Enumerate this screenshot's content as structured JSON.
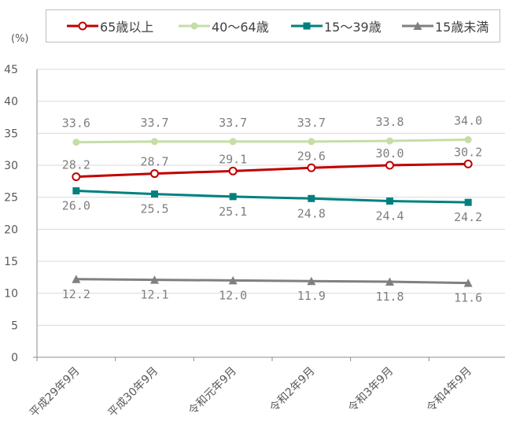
{
  "chart_data": {
    "type": "line",
    "unit_label": "(%)",
    "categories": [
      "平成29年9月",
      "平成30年9月",
      "令和元年9月",
      "令和2年9月",
      "令和3年9月",
      "令和4年9月"
    ],
    "ylim": [
      0,
      45
    ],
    "yticks": [
      0,
      5,
      10,
      15,
      20,
      25,
      30,
      35,
      40,
      45
    ],
    "grid": "horizontal",
    "legend_position": "top",
    "series": [
      {
        "name": "65歳以上",
        "values": [
          28.2,
          28.7,
          29.1,
          29.6,
          30.0,
          30.2
        ],
        "labels": [
          "28.2",
          "28.7",
          "29.1",
          "29.6",
          "30.0",
          "30.2"
        ],
        "color": "#c00000",
        "marker": "circle-open"
      },
      {
        "name": "40～64歳",
        "values": [
          33.6,
          33.7,
          33.7,
          33.7,
          33.8,
          34.0
        ],
        "labels": [
          "33.6",
          "33.7",
          "33.7",
          "33.7",
          "33.8",
          "34.0"
        ],
        "color": "#c4dea6",
        "marker": "circle"
      },
      {
        "name": "15～39歳",
        "values": [
          26.0,
          25.5,
          25.1,
          24.8,
          24.4,
          24.2
        ],
        "labels": [
          "26.0",
          "25.5",
          "25.1",
          "24.8",
          "24.4",
          "24.2"
        ],
        "color": "#008080",
        "marker": "square"
      },
      {
        "name": "15歳未満",
        "values": [
          12.2,
          12.1,
          12.0,
          11.9,
          11.8,
          11.6
        ],
        "labels": [
          "12.2",
          "12.1",
          "12.0",
          "11.9",
          "11.8",
          "11.6"
        ],
        "color": "#808080",
        "marker": "triangle"
      }
    ]
  }
}
